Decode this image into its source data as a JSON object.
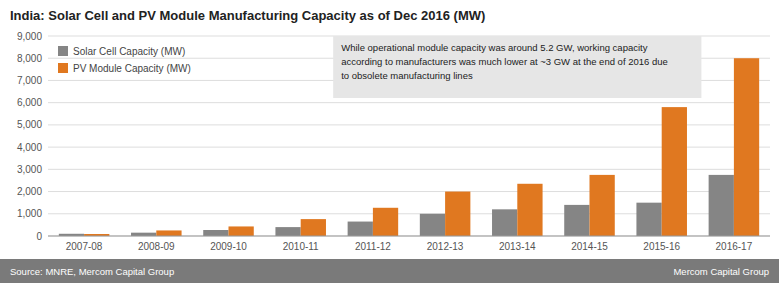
{
  "chart_data": {
    "type": "bar",
    "title": "India: Solar Cell and PV Module Manufacturing Capacity as of Dec 2016 (MW)",
    "categories": [
      "2007-08",
      "2008-09",
      "2009-10",
      "2010-11",
      "2011-12",
      "2012-13",
      "2013-14",
      "2014-15",
      "2015-16",
      "2016-17"
    ],
    "series": [
      {
        "name": "Solar Cell Capacity (MW)",
        "color": "#858585",
        "values": [
          100,
          150,
          270,
          400,
          650,
          1000,
          1200,
          1400,
          1500,
          2750
        ]
      },
      {
        "name": "PV Module Capacity (MW)",
        "color": "#E07820",
        "values": [
          90,
          250,
          430,
          760,
          1270,
          2000,
          2350,
          2750,
          5800,
          8000
        ]
      }
    ],
    "ylim": [
      0,
      9000
    ],
    "yticks": [
      0,
      {
        "value": 1000,
        "label": "1,000"
      },
      {
        "value": 2000,
        "label": "2,000"
      },
      {
        "value": 3000,
        "label": "3,000"
      },
      {
        "value": 4000,
        "label": "4,000"
      },
      {
        "value": 5000,
        "label": "5,000"
      },
      {
        "value": 6000,
        "label": "6,000"
      },
      {
        "value": 7000,
        "label": "7,000"
      },
      {
        "value": 8000,
        "label": "8,000"
      },
      {
        "value": 9000,
        "label": "9,000"
      }
    ],
    "grid": true,
    "legend": "upper left",
    "annotation": "While operational module capacity was around 5.2 GW, working capacity\naccording to manufacturers was much lower at ~3 GW at the end of 2016 due\nto obsolete manufacturing lines",
    "source": "Source: MNRE, Mercom Capital Group",
    "credit": "Mercom Capital Group"
  }
}
